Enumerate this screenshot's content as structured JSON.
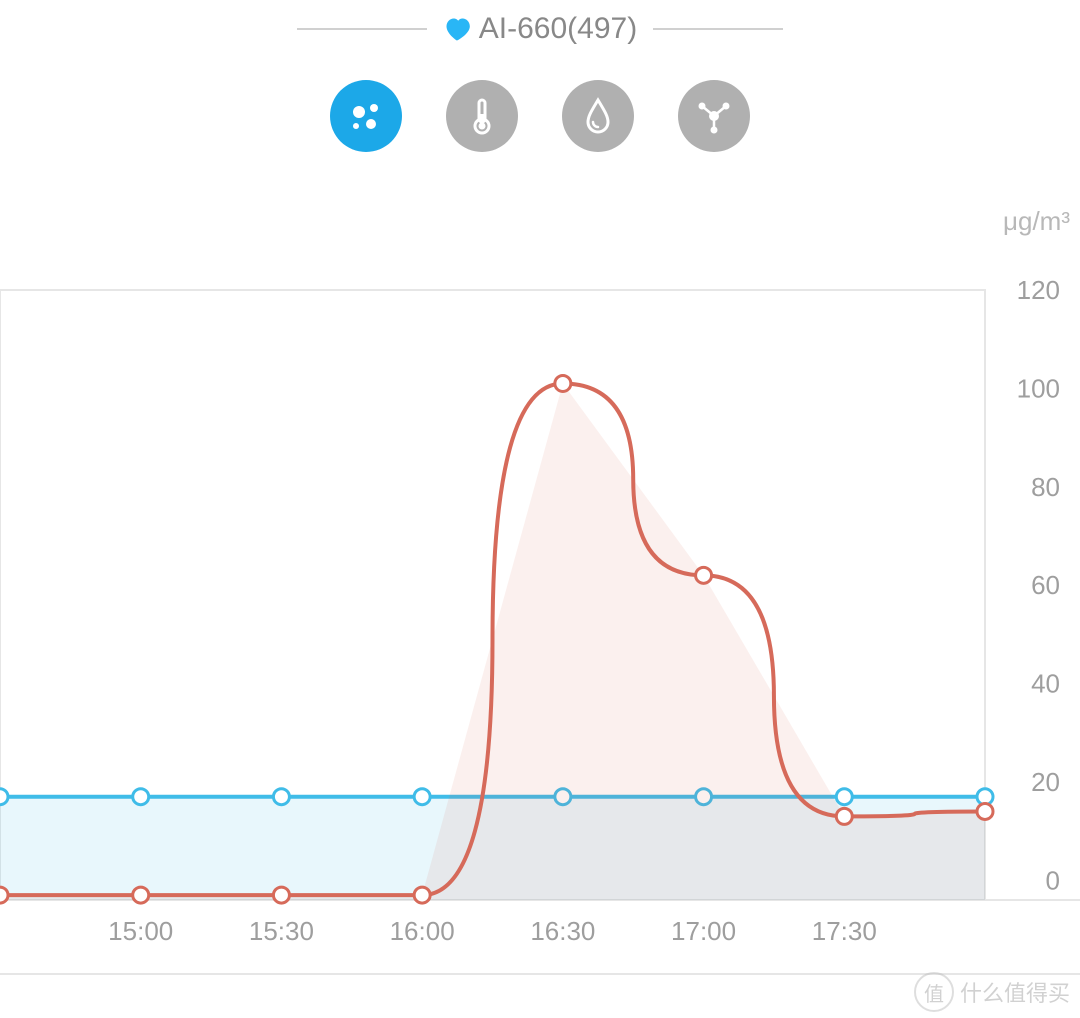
{
  "header": {
    "title": "AI-660(497)",
    "title_color": "#888888",
    "title_fontsize": 30,
    "divider_color": "#d0d0d0",
    "heart_color": "#29b6f6"
  },
  "tabs": {
    "items": [
      {
        "name": "particulates",
        "active": true
      },
      {
        "name": "temperature",
        "active": false
      },
      {
        "name": "humidity",
        "active": false
      },
      {
        "name": "compound",
        "active": false
      }
    ],
    "active_bg": "#1ca8e8",
    "inactive_bg": "#b0b0b0",
    "icon_color": "#ffffff",
    "diameter": 72
  },
  "chart": {
    "type": "line",
    "unit_label": "μg/m³",
    "unit_fontsize": 26,
    "unit_color": "#b8b8b8",
    "background_color": "#ffffff",
    "plot_border_color": "#e6e6e6",
    "grid_color": "#f2f2f2",
    "axis_label_color": "#9e9e9e",
    "axis_label_fontsize": 26,
    "x_labels_visible": [
      "15:00",
      "15:30",
      "16:00",
      "16:30",
      "17:00",
      "17:30"
    ],
    "x_range": {
      "min": 14.5,
      "max": 18.0,
      "step": 0.5
    },
    "y_range": {
      "min": -4,
      "max": 120,
      "step": 20
    },
    "y_ticks": [
      0,
      20,
      40,
      60,
      80,
      100,
      120
    ],
    "marker_radius": 8,
    "marker_stroke_width": 3,
    "line_width": 4,
    "series": [
      {
        "name": "blue",
        "color": "#3fbce8",
        "fill": "rgba(63,188,232,0.12)",
        "points": [
          {
            "x": 14.5,
            "y": 17
          },
          {
            "x": 15.0,
            "y": 17
          },
          {
            "x": 15.5,
            "y": 17
          },
          {
            "x": 16.0,
            "y": 17
          },
          {
            "x": 16.5,
            "y": 17
          },
          {
            "x": 17.0,
            "y": 17
          },
          {
            "x": 17.5,
            "y": 17
          },
          {
            "x": 18.0,
            "y": 17
          }
        ]
      },
      {
        "name": "red",
        "color": "#d66a5a",
        "fill": "rgba(214,106,90,0.10)",
        "points": [
          {
            "x": 14.5,
            "y": -3
          },
          {
            "x": 15.0,
            "y": -3
          },
          {
            "x": 15.5,
            "y": -3
          },
          {
            "x": 16.0,
            "y": -3
          },
          {
            "x": 16.5,
            "y": 101
          },
          {
            "x": 17.0,
            "y": 62
          },
          {
            "x": 17.5,
            "y": 13
          },
          {
            "x": 18.0,
            "y": 14
          }
        ]
      }
    ]
  },
  "watermark": {
    "badge_text": "值",
    "text": "什么值得买"
  }
}
